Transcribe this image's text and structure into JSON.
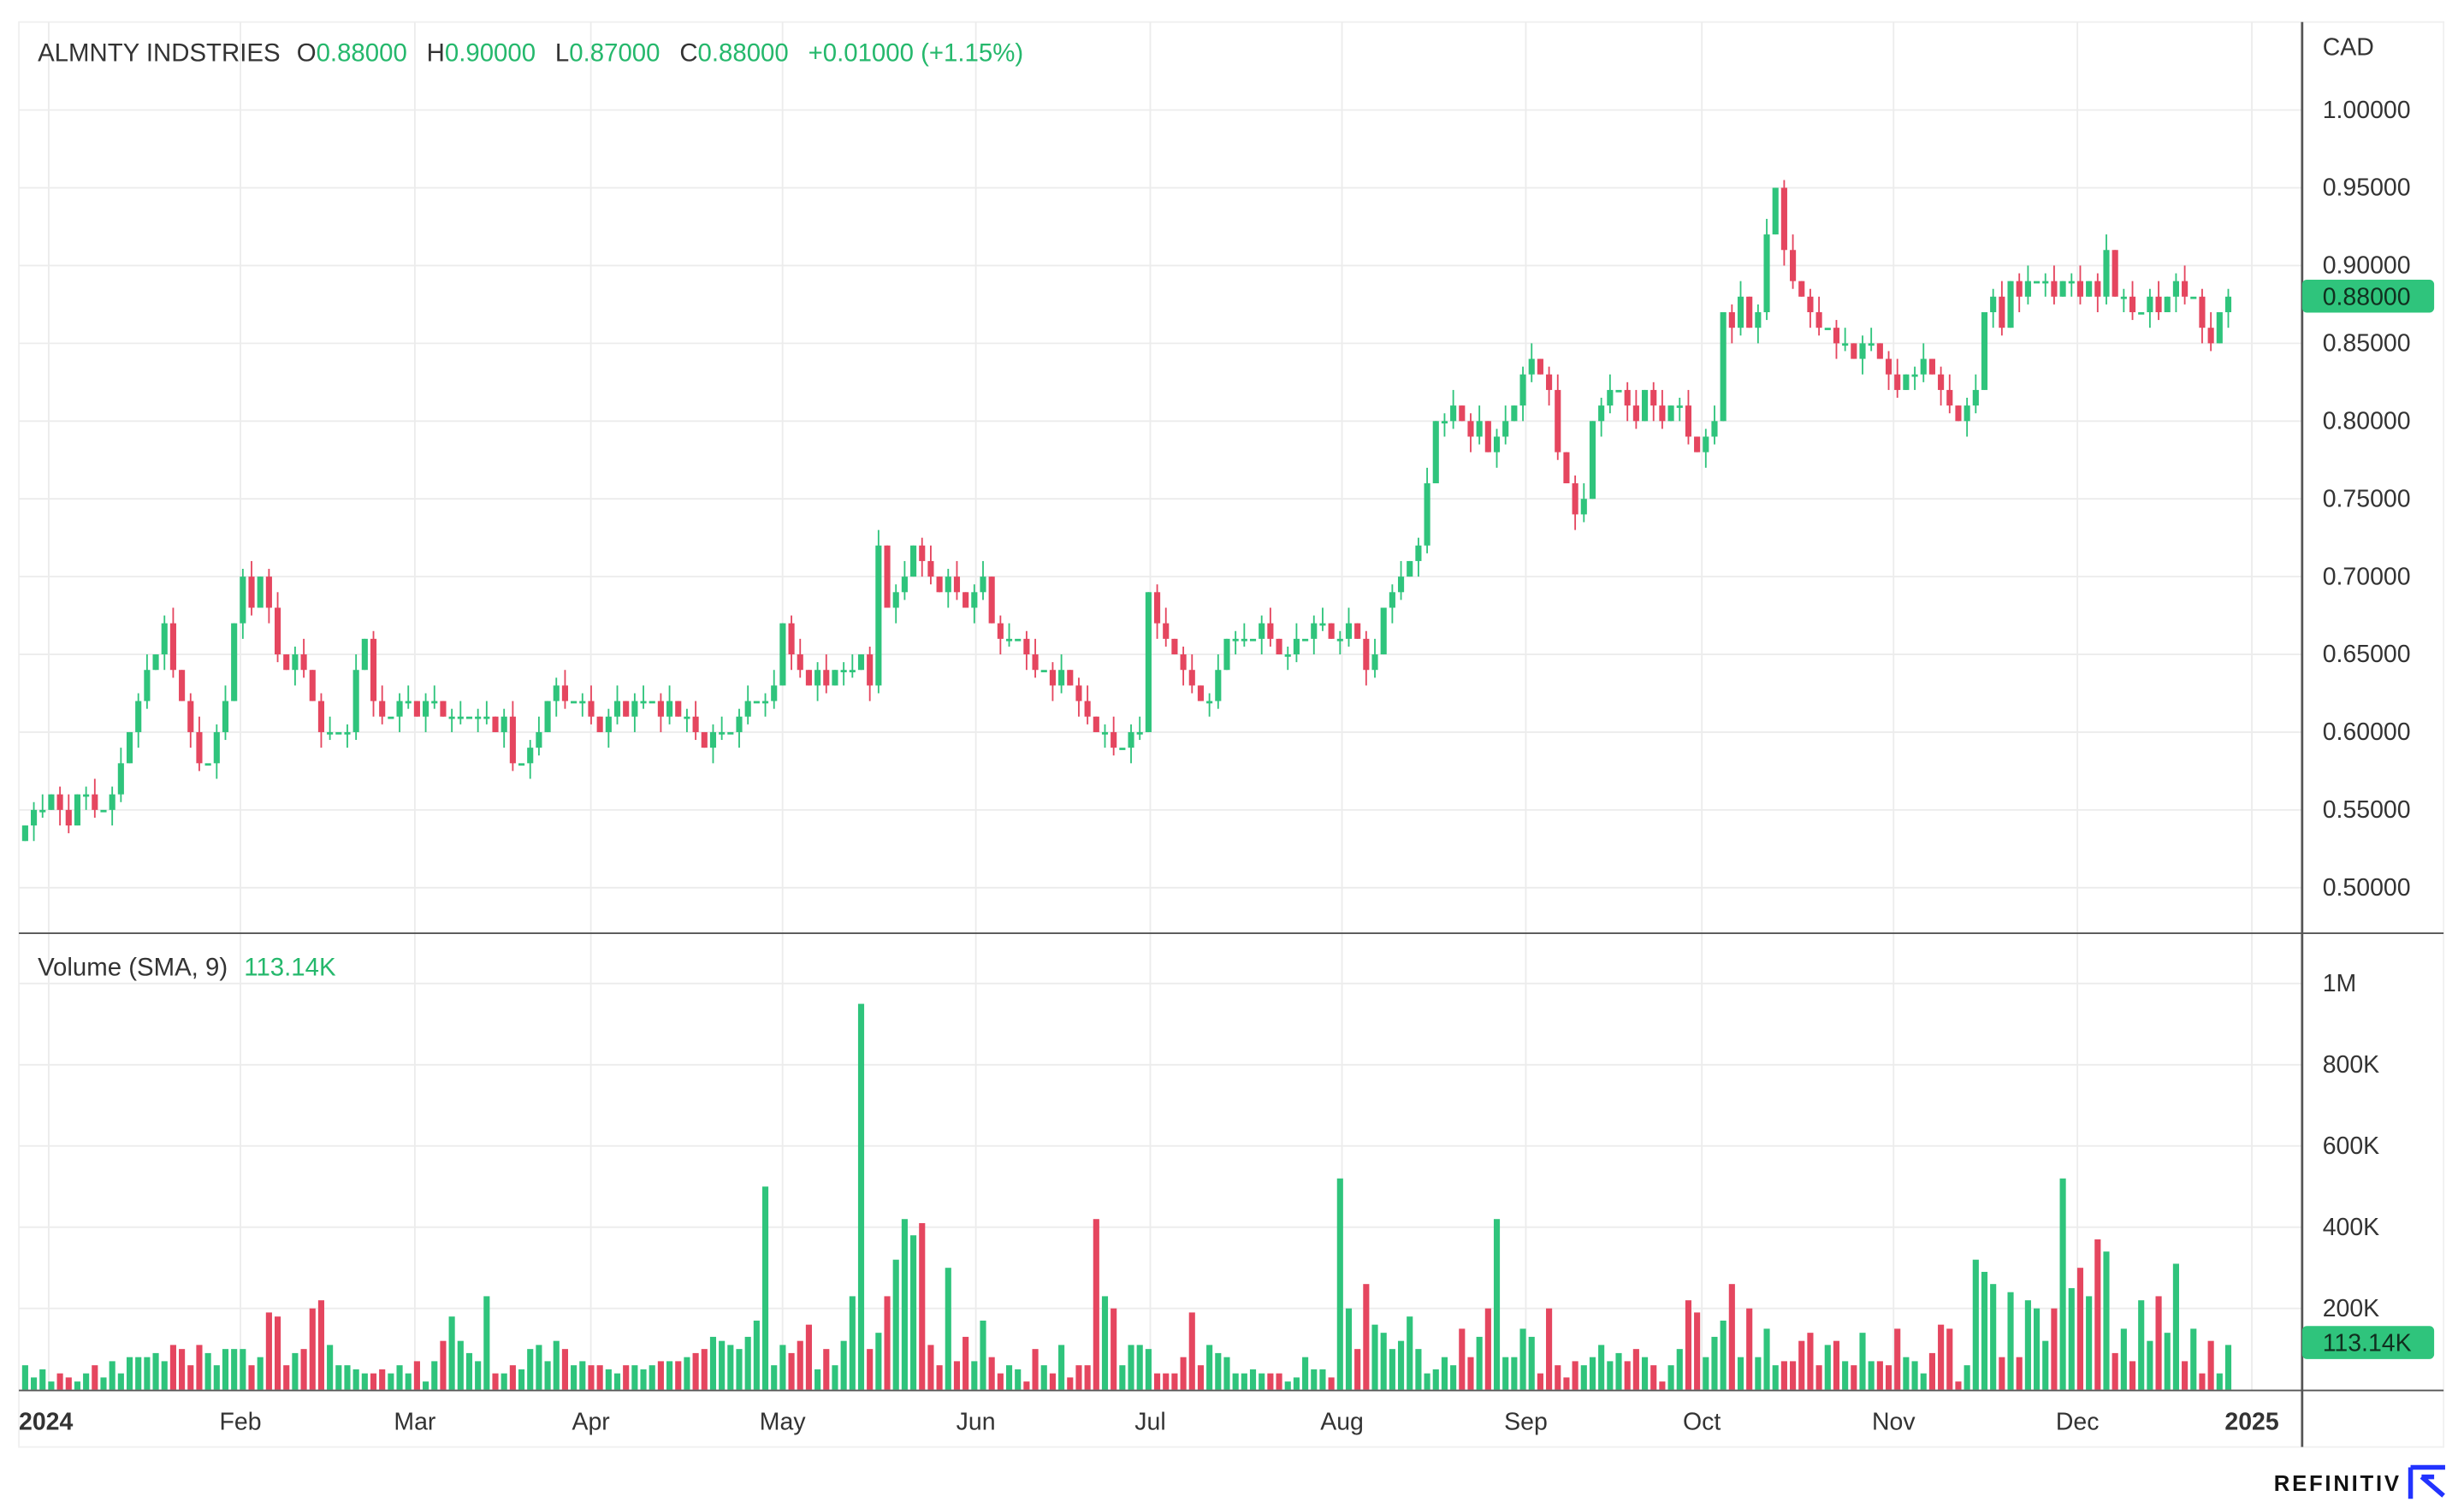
{
  "header": {
    "symbol": "ALMNTY INDSTRIES",
    "o_label": "O",
    "o_value": "0.88000",
    "h_label": "H",
    "h_value": "0.90000",
    "l_label": "L",
    "l_value": "0.87000",
    "c_label": "C",
    "c_value": "0.88000",
    "change": "+0.01000 (+1.15%)"
  },
  "volume_header": {
    "label": "Volume (SMA, 9)",
    "value": "113.14K"
  },
  "currency": "CAD",
  "last_price_badge": "0.88000",
  "last_volume_badge": "113.14K",
  "brand": "REFINITIV",
  "colors": {
    "up": "#2fc47c",
    "down": "#e5465f",
    "header_value": "#25b86c"
  },
  "chart_data": [
    {
      "type": "candlestick",
      "title": "ALMNTY INDSTRIES",
      "ylabel": "CAD",
      "ylim": [
        0.48,
        1.02
      ],
      "y_ticks": [
        "1.00000",
        "0.95000",
        "0.90000",
        "0.85000",
        "0.80000",
        "0.75000",
        "0.70000",
        "0.65000",
        "0.60000",
        "0.55000",
        "0.50000"
      ],
      "y_tick_values": [
        1.0,
        0.95,
        0.9,
        0.85,
        0.8,
        0.75,
        0.7,
        0.65,
        0.6,
        0.55,
        0.5
      ],
      "x_ticks": [
        "2024",
        "Feb",
        "Mar",
        "Apr",
        "May",
        "Jun",
        "Jul",
        "Aug",
        "Sep",
        "Oct",
        "Nov",
        "Dec",
        "2025"
      ],
      "grid": true,
      "close": [
        0.54,
        0.55,
        0.55,
        0.56,
        0.55,
        0.54,
        0.56,
        0.56,
        0.55,
        0.55,
        0.56,
        0.58,
        0.6,
        0.62,
        0.64,
        0.65,
        0.67,
        0.64,
        0.62,
        0.6,
        0.58,
        0.58,
        0.6,
        0.62,
        0.67,
        0.7,
        0.68,
        0.7,
        0.68,
        0.65,
        0.64,
        0.65,
        0.64,
        0.62,
        0.6,
        0.6,
        0.6,
        0.6,
        0.64,
        0.66,
        0.62,
        0.61,
        0.61,
        0.62,
        0.62,
        0.61,
        0.62,
        0.62,
        0.61,
        0.61,
        0.61,
        0.61,
        0.61,
        0.61,
        0.6,
        0.61,
        0.58,
        0.58,
        0.59,
        0.6,
        0.62,
        0.63,
        0.62,
        0.62,
        0.62,
        0.61,
        0.6,
        0.61,
        0.62,
        0.61,
        0.62,
        0.62,
        0.62,
        0.61,
        0.62,
        0.61,
        0.61,
        0.6,
        0.59,
        0.6,
        0.6,
        0.6,
        0.61,
        0.62,
        0.62,
        0.62,
        0.63,
        0.67,
        0.65,
        0.64,
        0.63,
        0.64,
        0.63,
        0.64,
        0.64,
        0.64,
        0.65,
        0.63,
        0.72,
        0.68,
        0.69,
        0.7,
        0.72,
        0.71,
        0.7,
        0.69,
        0.7,
        0.69,
        0.68,
        0.69,
        0.7,
        0.67,
        0.66,
        0.66,
        0.66,
        0.65,
        0.64,
        0.64,
        0.63,
        0.64,
        0.63,
        0.62,
        0.61,
        0.6,
        0.6,
        0.59,
        0.59,
        0.6,
        0.6,
        0.69,
        0.67,
        0.66,
        0.65,
        0.64,
        0.63,
        0.62,
        0.62,
        0.64,
        0.66,
        0.66,
        0.66,
        0.66,
        0.67,
        0.66,
        0.65,
        0.65,
        0.66,
        0.66,
        0.67,
        0.67,
        0.66,
        0.66,
        0.67,
        0.66,
        0.64,
        0.65,
        0.68,
        0.69,
        0.7,
        0.71,
        0.72,
        0.76,
        0.8,
        0.8,
        0.81,
        0.8,
        0.79,
        0.8,
        0.78,
        0.79,
        0.8,
        0.81,
        0.83,
        0.84,
        0.83,
        0.82,
        0.78,
        0.76,
        0.74,
        0.75,
        0.8,
        0.81,
        0.82,
        0.82,
        0.81,
        0.8,
        0.82,
        0.81,
        0.8,
        0.81,
        0.81,
        0.79,
        0.78,
        0.79,
        0.8,
        0.87,
        0.86,
        0.88,
        0.86,
        0.87,
        0.92,
        0.95,
        0.91,
        0.89,
        0.88,
        0.87,
        0.86,
        0.86,
        0.85,
        0.85,
        0.84,
        0.85,
        0.85,
        0.84,
        0.83,
        0.82,
        0.83,
        0.83,
        0.84,
        0.83,
        0.82,
        0.81,
        0.8,
        0.81,
        0.82,
        0.87,
        0.88,
        0.86,
        0.89,
        0.88,
        0.89,
        0.89,
        0.89,
        0.88,
        0.89,
        0.89,
        0.88,
        0.89,
        0.88,
        0.91,
        0.88,
        0.88,
        0.87,
        0.87,
        0.88,
        0.87,
        0.88,
        0.89,
        0.88,
        0.88,
        0.86,
        0.85,
        0.87,
        0.88
      ]
    },
    {
      "type": "bar",
      "title": "Volume (SMA, 9)",
      "unit": "K",
      "ylim": [
        0,
        1000
      ],
      "y_ticks": [
        "1M",
        "800K",
        "600K",
        "400K",
        "200K"
      ],
      "y_tick_values": [
        1000,
        800,
        600,
        400,
        200
      ],
      "values": [
        60,
        30,
        50,
        20,
        40,
        30,
        20,
        40,
        60,
        30,
        70,
        40,
        80,
        80,
        80,
        90,
        70,
        110,
        100,
        60,
        110,
        90,
        60,
        100,
        100,
        100,
        60,
        80,
        190,
        180,
        60,
        90,
        100,
        200,
        220,
        110,
        60,
        60,
        50,
        40,
        40,
        50,
        40,
        60,
        40,
        70,
        20,
        70,
        120,
        180,
        120,
        90,
        70,
        230,
        40,
        40,
        60,
        50,
        100,
        110,
        70,
        120,
        100,
        60,
        70,
        60,
        60,
        50,
        40,
        60,
        60,
        50,
        60,
        70,
        70,
        70,
        80,
        90,
        100,
        130,
        120,
        110,
        100,
        130,
        170,
        500,
        60,
        110,
        90,
        120,
        160,
        50,
        100,
        60,
        120,
        230,
        950,
        100,
        140,
        230,
        320,
        420,
        380,
        410,
        110,
        60,
        300,
        70,
        130,
        70,
        170,
        80,
        40,
        60,
        50,
        20,
        100,
        60,
        40,
        110,
        30,
        60,
        60,
        420,
        230,
        200,
        60,
        110,
        110,
        100,
        40,
        40,
        40,
        80,
        190,
        60,
        110,
        90,
        80,
        40,
        40,
        50,
        40,
        40,
        40,
        20,
        30,
        80,
        50,
        50,
        30,
        520,
        200,
        100,
        260,
        160,
        140,
        100,
        120,
        180,
        100,
        40,
        50,
        80,
        60,
        150,
        80,
        130,
        200,
        420,
        80,
        80,
        150,
        130,
        40,
        200,
        60,
        30,
        70,
        60,
        80,
        110,
        70,
        90,
        70,
        100,
        80,
        60,
        20,
        60,
        100,
        220,
        190,
        80,
        130,
        170,
        260,
        80,
        200,
        80,
        150,
        60,
        70,
        70,
        120,
        140,
        60,
        110,
        120,
        70,
        60,
        140,
        70,
        70,
        60,
        150,
        80,
        70,
        40,
        90,
        160,
        150,
        20,
        60,
        320,
        290,
        260,
        80,
        240,
        80,
        220,
        200,
        120,
        200,
        520,
        250,
        300,
        230,
        370,
        340,
        90,
        150,
        70,
        220,
        120,
        230,
        140,
        310,
        70,
        150,
        40,
        120,
        40,
        110
      ]
    }
  ]
}
